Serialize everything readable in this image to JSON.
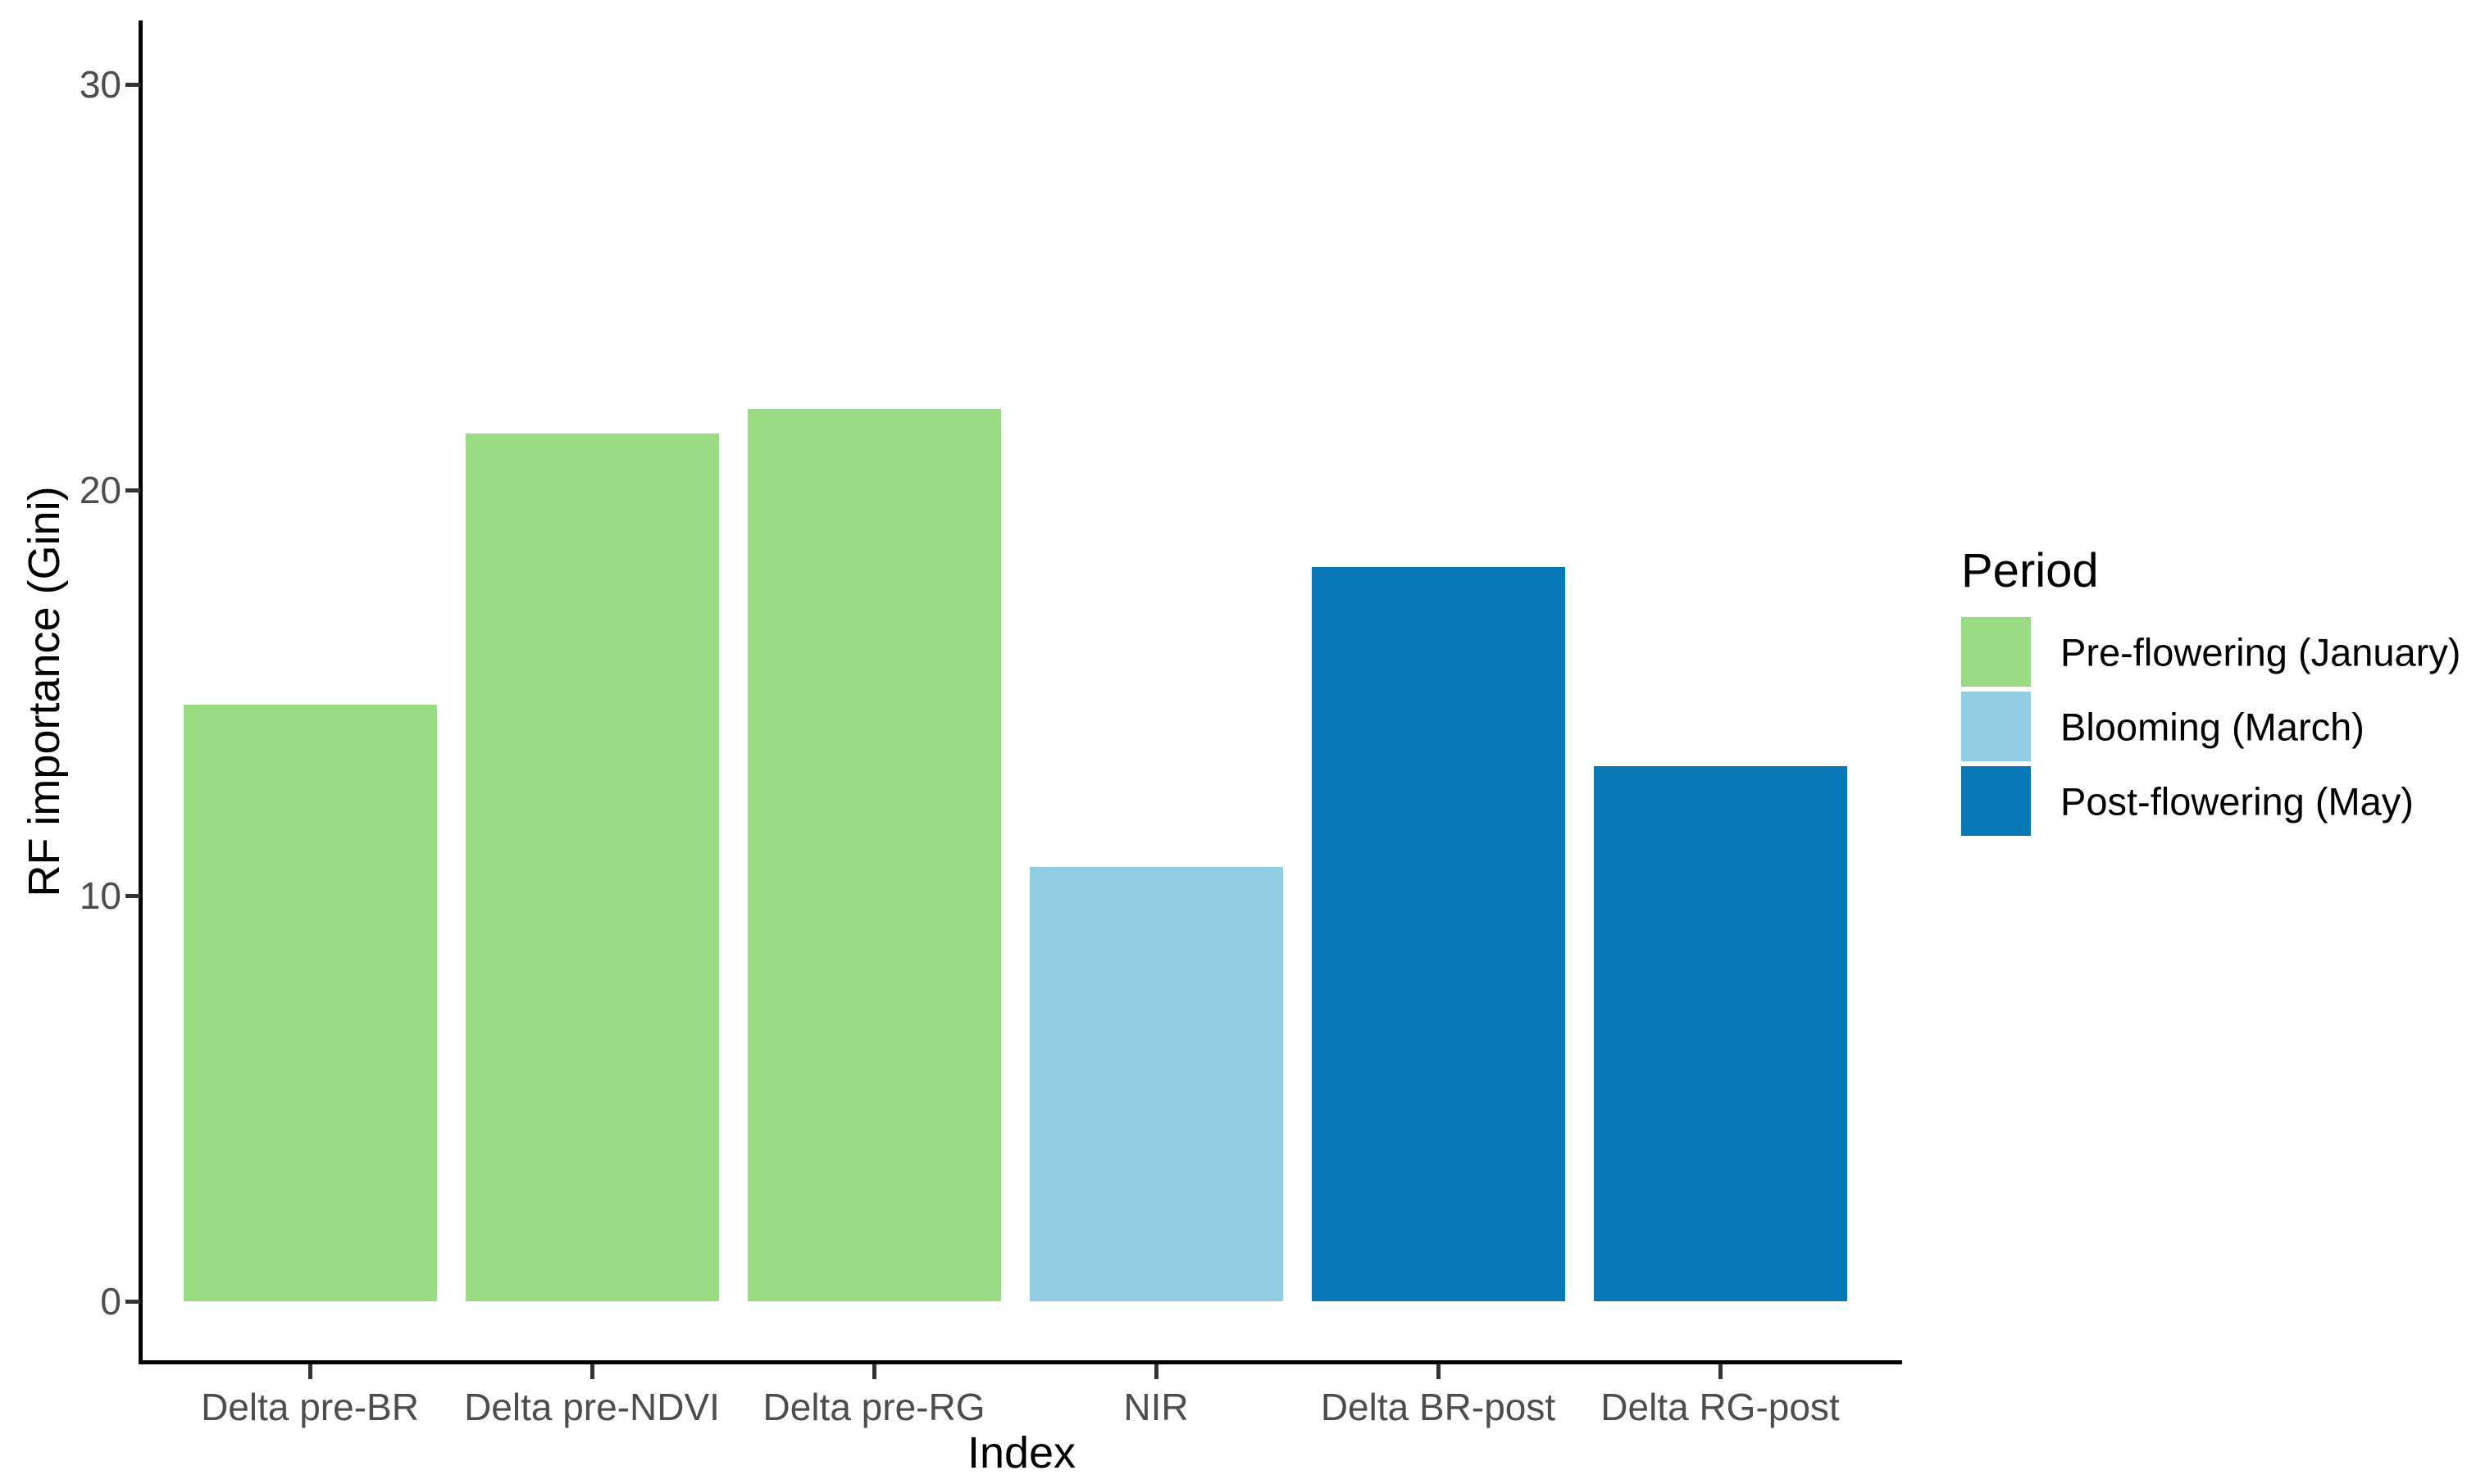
{
  "chart_data": {
    "type": "bar",
    "xlabel": "Index",
    "ylabel": "RF importance (Gini)",
    "categories": [
      "Delta pre-BR",
      "Delta pre-NDVI",
      "Delta pre-RG",
      "NIR",
      "Delta BR-post",
      "Delta RG-post"
    ],
    "values": [
      14.7,
      21.4,
      22.0,
      10.7,
      18.1,
      13.2
    ],
    "groups": [
      "Pre-flowering (January)",
      "Pre-flowering (January)",
      "Pre-flowering (January)",
      "Blooming (March)",
      "Post-flowering (May)",
      "Post-flowering (May)"
    ],
    "yticks": [
      "0",
      "10",
      "20",
      "30"
    ],
    "ylim": [
      0,
      31.6
    ],
    "grid": false,
    "legend": {
      "title": "Period",
      "position": "right",
      "entries": [
        {
          "label": "Pre-flowering (January)",
          "color": "#9ADC84"
        },
        {
          "label": "Blooming (March)",
          "color": "#92CEE3"
        },
        {
          "label": "Post-flowering (May)",
          "color": "#0878B6"
        }
      ]
    },
    "colors": {
      "axis_line": "#000000",
      "tick_text": "#4d4d4d",
      "title_text": "#000000",
      "background": "#ffffff"
    }
  }
}
